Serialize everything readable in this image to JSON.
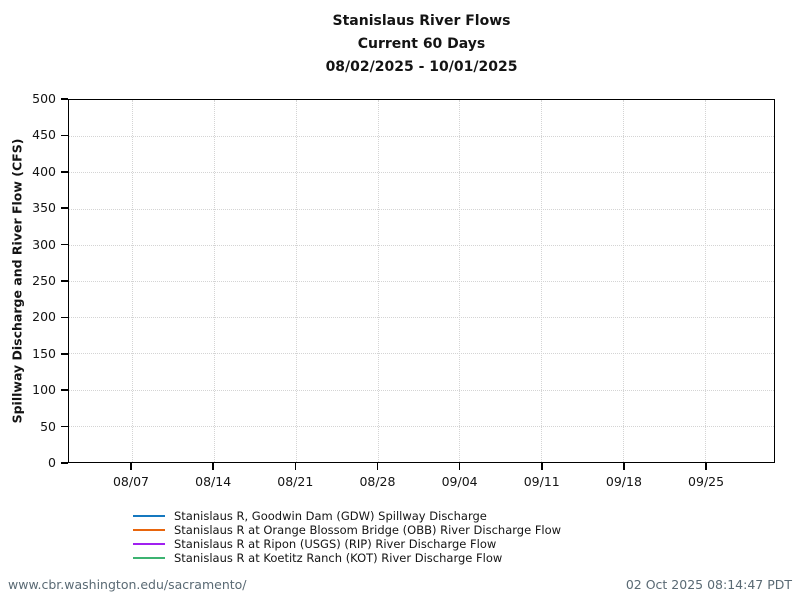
{
  "chart_data": {
    "type": "line",
    "title": "Stanislaus River Flows",
    "subtitle": "Current 60 Days",
    "date_range": "08/02/2025 - 10/01/2025",
    "ylabel": "Spillway Discharge and River Flow (CFS)",
    "ylim": [
      0,
      500
    ],
    "y_ticks": [
      0,
      50,
      100,
      150,
      200,
      250,
      300,
      350,
      400,
      450,
      500
    ],
    "x_tick_labels": [
      "08/07",
      "08/14",
      "08/21",
      "08/28",
      "09/04",
      "09/11",
      "09/18",
      "09/25"
    ],
    "x_range_start": "08/02/2025",
    "x_range_end": "10/01/2025",
    "grid": true,
    "legend_position": "bottom",
    "series": [
      {
        "name": "Stanislaus R, Goodwin Dam (GDW) Spillway Discharge",
        "color": "#1578bf",
        "values": []
      },
      {
        "name": "Stanislaus R at Orange Blossom Bridge (OBB) River Discharge Flow",
        "color": "#e8650c",
        "values": []
      },
      {
        "name": "Stanislaus R at Ripon (USGS) (RIP) River Discharge Flow",
        "color": "#a020f0",
        "values": []
      },
      {
        "name": "Stanislaus R at Koetitz Ranch (KOT) River Discharge Flow",
        "color": "#3cb371",
        "values": []
      }
    ]
  },
  "footer": {
    "url": "www.cbr.washington.edu/sacramento/",
    "timestamp": "02 Oct 2025 08:14:47 PDT"
  }
}
